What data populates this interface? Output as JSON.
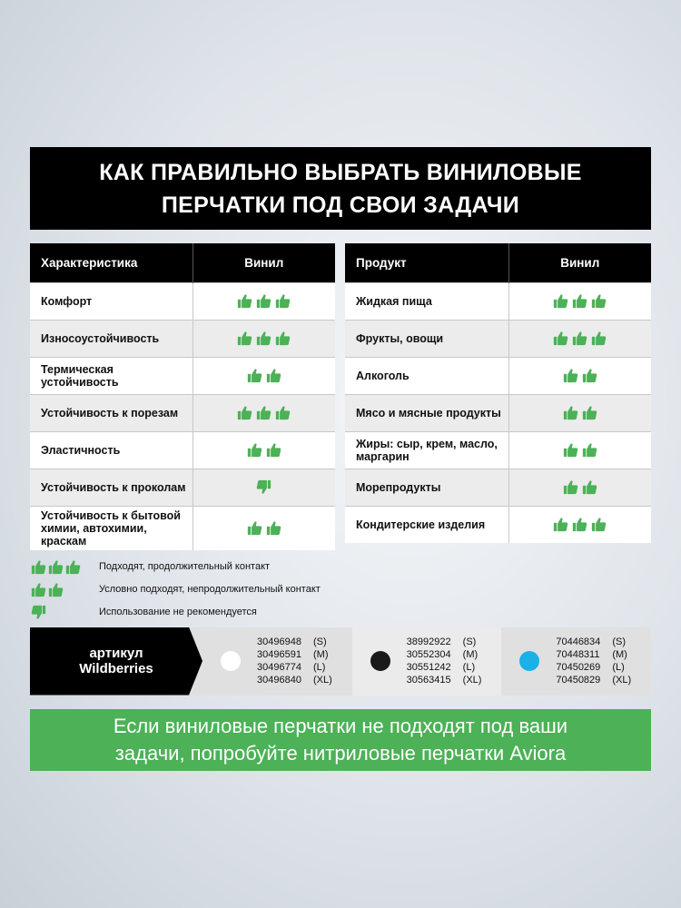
{
  "title": {
    "line1": "КАК ПРАВИЛЬНО ВЫБРАТЬ ВИНИЛОВЫЕ",
    "line2": "ПЕРЧАТКИ ПОД СВОИ ЗАДАЧИ"
  },
  "colors": {
    "green": "#4cb157",
    "black": "#000000",
    "white_glove": "#ffffff",
    "black_glove": "#1a1a1a",
    "blue_glove": "#1ab0e8"
  },
  "table_left": {
    "headers": [
      "Характеристика",
      "Винил"
    ],
    "rows": [
      {
        "label": "Комфорт",
        "rating": 3
      },
      {
        "label": "Износоустойчивость",
        "rating": 3
      },
      {
        "label": "Термическая устойчивость",
        "rating": 2
      },
      {
        "label": "Устойчивость к порезам",
        "rating": 3
      },
      {
        "label": "Эластичность",
        "rating": 2
      },
      {
        "label": "Устойчивость к проколам",
        "rating": -1
      },
      {
        "label": "Устойчивость к бытовой химии, автохимии, краскам",
        "rating": 2
      }
    ]
  },
  "table_right": {
    "headers": [
      "Продукт",
      "Винил"
    ],
    "rows": [
      {
        "label": "Жидкая пища",
        "rating": 3
      },
      {
        "label": "Фрукты, овощи",
        "rating": 3
      },
      {
        "label": "Алкоголь",
        "rating": 2
      },
      {
        "label": "Мясо и мясные продукты",
        "rating": 2
      },
      {
        "label": "Жиры: сыр, крем, масло, маргарин",
        "rating": 2
      },
      {
        "label": "Морепродукты",
        "rating": 2
      },
      {
        "label": "Кондитерские изделия",
        "rating": 3
      }
    ]
  },
  "legend": [
    {
      "rating": 3,
      "text": "Подходят, продолжительный контакт"
    },
    {
      "rating": 2,
      "text": "Условно подходят, непродолжительный контакт"
    },
    {
      "rating": -1,
      "text": "Использование не рекомендуется"
    }
  ],
  "articles": {
    "label1": "артикул",
    "label2": "Wildberries",
    "groups": [
      {
        "color": "#ffffff",
        "items": [
          [
            "30496948",
            "(S)"
          ],
          [
            "30496591",
            "(M)"
          ],
          [
            "30496774",
            "(L)"
          ],
          [
            "30496840",
            "(XL)"
          ]
        ]
      },
      {
        "color": "#1a1a1a",
        "items": [
          [
            "38992922",
            "(S)"
          ],
          [
            "30552304",
            "(M)"
          ],
          [
            "30551242",
            "(L)"
          ],
          [
            "30563415",
            "(XL)"
          ]
        ]
      },
      {
        "color": "#1ab0e8",
        "items": [
          [
            "70446834",
            "(S)"
          ],
          [
            "70448311",
            "(M)"
          ],
          [
            "70450269",
            "(L)"
          ],
          [
            "70450829",
            "(XL)"
          ]
        ]
      }
    ]
  },
  "cta": {
    "line1": "Если виниловые перчатки не подходят под ваши",
    "line2": "задачи, попробуйте нитриловые перчатки Aviora"
  }
}
